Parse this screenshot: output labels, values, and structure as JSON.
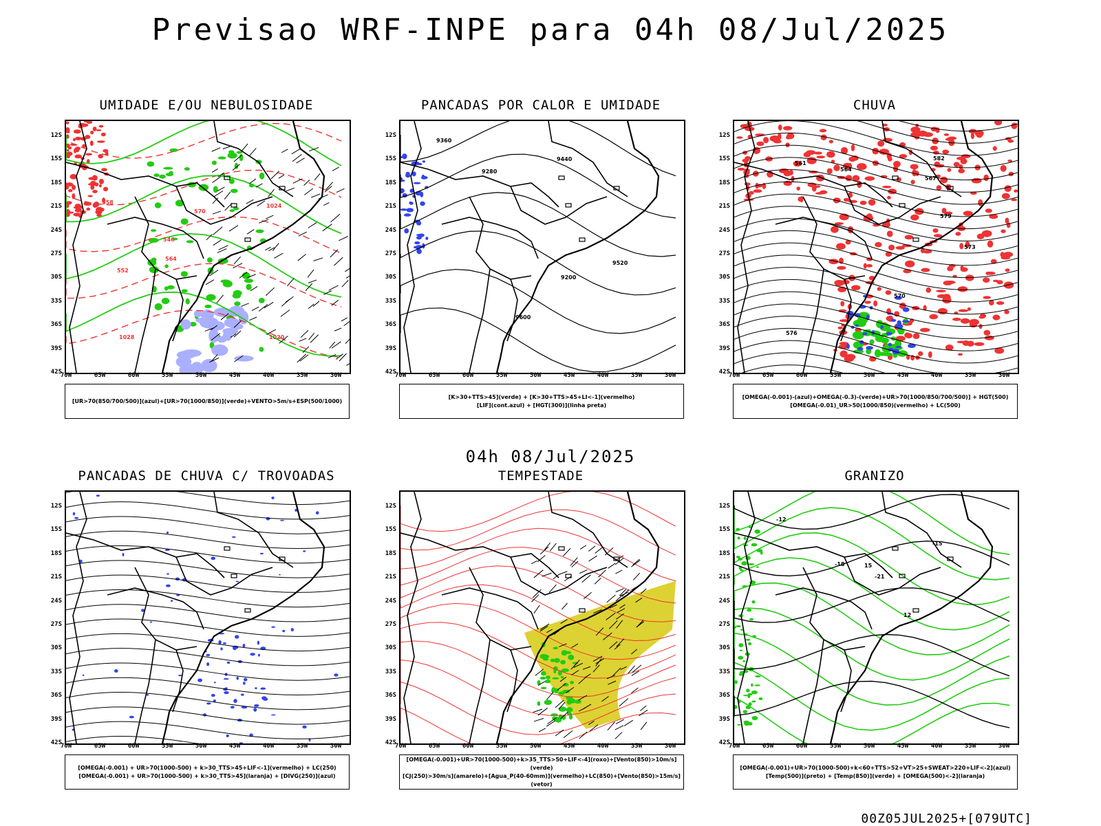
{
  "title": "Previsao WRF-INPE  para 04h 08/Jul/2025",
  "subtitle": "04h 08/Jul/2025",
  "footer": "00Z05JUL2025+[079UTC]",
  "axes": {
    "lat_labels": [
      "12S",
      "15S",
      "18S",
      "21S",
      "24S",
      "27S",
      "30S",
      "33S",
      "36S",
      "39S",
      "42S"
    ],
    "lon_labels": [
      "70W",
      "65W",
      "60W",
      "55W",
      "50W",
      "45W",
      "40W",
      "35W",
      "30W"
    ]
  },
  "colors": {
    "map_outline": "#000000",
    "blue": "#3344ee",
    "lightblue": "#aab0ff",
    "green": "#22cc11",
    "red": "#ee3333",
    "yellow": "#ddd233",
    "orange": "#ee8811"
  },
  "panels": [
    {
      "title": "UMIDADE E/OU NEBULOSIDADE",
      "legend": [
        "[UR>70(850/700/500)](azul)+[UR>70(1000/850)](verde)+VENTO>5m/s+ESP(500/1000)"
      ],
      "contour_labels": [
        "1020",
        "1024",
        "1028",
        "570",
        "564",
        "558",
        "552",
        "546"
      ]
    },
    {
      "title": "PANCADAS POR CALOR E UMIDADE",
      "legend": [
        "[K>30+TTS>45](verde) + [K>30+TTS>45+LI<-1](vermelho)",
        "[LIF](cont.azul) + [HGT(300)](linha preta)"
      ],
      "contour_labels": [
        "9600",
        "9520",
        "9440",
        "9360",
        "9280",
        "9200"
      ]
    },
    {
      "title": "CHUVA",
      "legend": [
        "[OMEGA(-0.001)-(azul)+OMEGA(-0.3)-(verde)+UR>70(1000/850/700/500)] + HGT(500)",
        "[OMEGA(-0.01)_UR>50(1000/850)(vermelho) + LC(500)"
      ],
      "contour_labels": [
        "582",
        "579",
        "576",
        "573",
        "570",
        "567",
        "564",
        "561"
      ]
    },
    {
      "title": "PANCADAS DE CHUVA C/ TROVOADAS",
      "legend": [
        "[OMEGA(-0.001) + UR>70(1000-500) + k>30_TTS>45+LIF<-1](vermelho) + LC(250)",
        "[OMEGA(-0.001) + UR>70(1000-500) + k>30_TTS>45](laranja) + [DIVG(250)](azul)"
      ],
      "contour_labels": []
    },
    {
      "title": "TEMPESTADE",
      "legend": [
        "[OMEGA(-0.001)+UR>70(1000-500)+k>35_TTS>50+LIF<-4](roxo)+[Vento(850)>10m/s](verde)",
        "[CJ(250)>30m/s](amarelo)+[Agua_P(40-60mm)](vermelho)+LC(850)+[Vento(850)>15m/s](vetor)"
      ],
      "contour_labels": []
    },
    {
      "title": "GRANIZO",
      "legend": [
        "[OMEGA(-0.001)+UR>70(1000-500)+k<60+TTS>52+VT>25+SWEAT>220+LIF<-2](azul)",
        "[Temp(500)](preto) + [Temp(850)](verde) + [OMEGA(500)<-2](laranja)"
      ],
      "contour_labels": [
        "-12",
        "-15",
        "-18",
        "-21",
        "12",
        "15"
      ]
    }
  ]
}
